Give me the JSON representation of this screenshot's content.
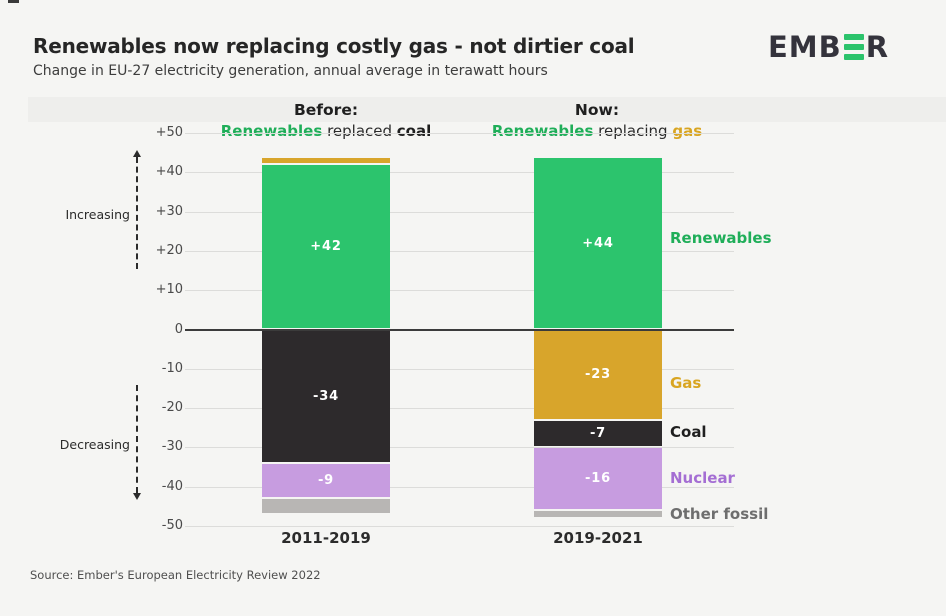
{
  "page": {
    "title": "Renewables now replacing costly gas - not dirtier coal",
    "subtitle": "Change in EU-27 electricity generation, annual average in terawatt hours",
    "source": "Source: Ember's European Electricity Review 2022",
    "logo": {
      "left": "EMB",
      "right": "R",
      "bar_color": "#2bc36b"
    }
  },
  "annotations": {
    "increasing": "Increasing",
    "decreasing": "Decreasing"
  },
  "col_headers": {
    "before": {
      "title": "Before:",
      "a": "Renewables",
      "b": " replaced ",
      "c": "coal"
    },
    "now": {
      "title": "Now:",
      "a": "Renewables",
      "b": " replacing ",
      "c": "gas"
    }
  },
  "legend": {
    "items": [
      {
        "label": "Renewables",
        "color": "#1fae59"
      },
      {
        "label": "Gas",
        "color": "#d9a521"
      },
      {
        "label": "Coal",
        "color": "#1f1f1f"
      },
      {
        "label": "Nuclear",
        "color": "#a46ed3"
      },
      {
        "label": "Other fossil",
        "color": "#6e6e6e"
      }
    ]
  },
  "chart_data": {
    "type": "bar",
    "stacked": true,
    "unit": "terawatt hours (TWh)",
    "title": "Renewables now replacing costly gas - not dirtier coal",
    "subtitle": "Change in EU-27 electricity generation, annual average in terawatt hours",
    "categories": [
      "2011-2019",
      "2019-2021"
    ],
    "series": [
      {
        "name": "Renewables",
        "color": "#2cc46d",
        "values": [
          42,
          44
        ],
        "labels": [
          "+42",
          "+44"
        ]
      },
      {
        "name": "Gas",
        "color": "#d8a52b",
        "values": [
          2,
          -23
        ],
        "labels": [
          "",
          "-23"
        ]
      },
      {
        "name": "Coal",
        "color": "#2d2a2c",
        "values": [
          -34,
          -7
        ],
        "labels": [
          "-34",
          "-7"
        ]
      },
      {
        "name": "Nuclear",
        "color": "#c79ce0",
        "values": [
          -9,
          -16
        ],
        "labels": [
          "-9",
          "-16"
        ]
      },
      {
        "name": "Other fossil",
        "color": "#b8b6b4",
        "values": [
          -4,
          -2
        ],
        "labels": [
          "",
          ""
        ]
      }
    ],
    "ylim": [
      -50,
      50
    ],
    "yticks": [
      {
        "v": 50,
        "label": "+50"
      },
      {
        "v": 40,
        "label": "+40"
      },
      {
        "v": 30,
        "label": "+30"
      },
      {
        "v": 20,
        "label": "+20"
      },
      {
        "v": 10,
        "label": "+10"
      },
      {
        "v": 0,
        "label": "0"
      },
      {
        "v": -10,
        "label": "-10"
      },
      {
        "v": -20,
        "label": "-20"
      },
      {
        "v": -30,
        "label": "-30"
      },
      {
        "v": -40,
        "label": "-40"
      },
      {
        "v": -50,
        "label": "-50"
      }
    ],
    "grid": true,
    "legend_position": "right"
  }
}
